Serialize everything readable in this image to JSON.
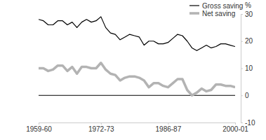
{
  "chart_data": {
    "type": "line",
    "y_label": "%",
    "categories": [
      "1959-60",
      null,
      null,
      null,
      null,
      null,
      null,
      null,
      null,
      null,
      null,
      null,
      null,
      "1972-73",
      null,
      null,
      null,
      null,
      null,
      null,
      null,
      null,
      null,
      null,
      null,
      null,
      null,
      "1986-87",
      null,
      null,
      null,
      null,
      null,
      null,
      null,
      null,
      null,
      null,
      null,
      null,
      null,
      "2000-01"
    ],
    "series": [
      {
        "name": "Gross saving",
        "color": "#000000",
        "values": [
          28,
          27.5,
          26,
          26,
          27.5,
          27.5,
          26,
          27,
          25,
          27,
          28,
          27,
          27.5,
          29,
          25,
          23,
          22.5,
          20.5,
          21.5,
          22.5,
          22,
          21.5,
          18.5,
          20,
          20,
          19,
          19,
          19.5,
          21,
          22.5,
          22,
          20,
          17.5,
          16.5,
          17.5,
          18.5,
          17.5,
          18,
          19,
          19,
          18.5,
          18
        ]
      },
      {
        "name": "Net saving",
        "color": "#b3b3b3",
        "values": [
          10,
          10,
          9,
          9.5,
          11,
          11,
          9,
          10.5,
          8,
          10.5,
          10.5,
          10,
          10,
          12,
          9.5,
          8,
          7.5,
          5.5,
          6.5,
          7,
          7,
          6.5,
          5.5,
          3,
          4.5,
          4.5,
          3.5,
          3,
          4.5,
          6,
          6,
          2,
          0,
          1,
          2.5,
          1.5,
          2,
          4,
          4,
          3.5,
          3.5,
          3
        ]
      }
    ],
    "ylim": [
      -10,
      30
    ],
    "yticks": [
      -10,
      0,
      10,
      20,
      30
    ],
    "grid": false,
    "legend": "top-right"
  }
}
